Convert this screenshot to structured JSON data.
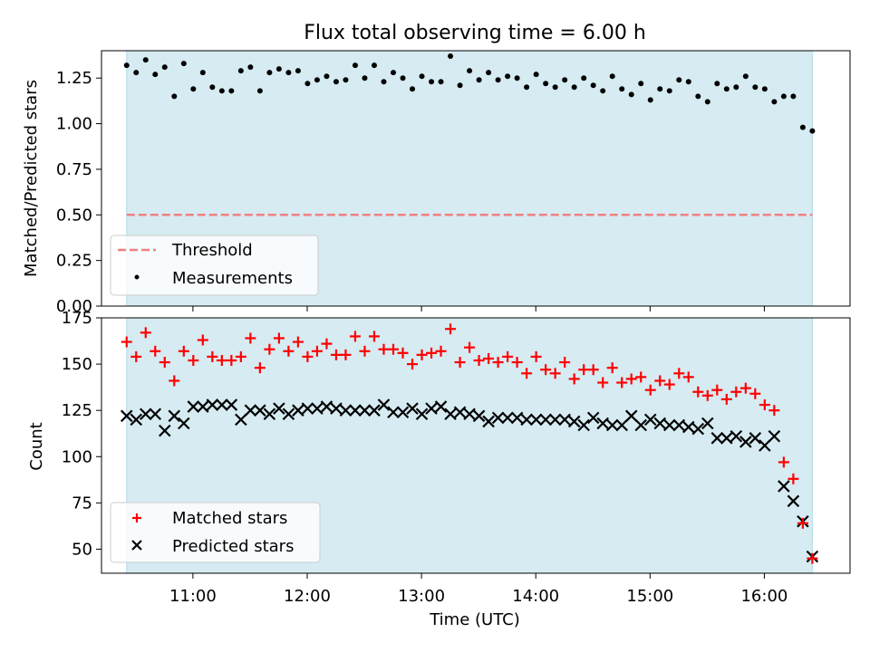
{
  "chart_data": {
    "title": "Flux total observing time = 6.00 h",
    "xlabel": "Time (UTC)",
    "x_unit": "hours (UTC)",
    "x_range": [
      10.2,
      16.75
    ],
    "x_ticks": [
      {
        "value": 11,
        "label": "11:00"
      },
      {
        "value": 12,
        "label": "12:00"
      },
      {
        "value": 13,
        "label": "13:00"
      },
      {
        "value": 14,
        "label": "14:00"
      },
      {
        "value": 15,
        "label": "15:00"
      },
      {
        "value": 16,
        "label": "16:00"
      }
    ],
    "observing_window": [
      10.42,
      16.42
    ],
    "shade_color": "#add8e6",
    "top": {
      "type": "scatter",
      "ylabel": "Matched/Predicted stars",
      "ylim": [
        0,
        1.4
      ],
      "yticks": [
        "0.00",
        "0.25",
        "0.50",
        "0.75",
        "1.00",
        "1.25"
      ],
      "threshold": {
        "name": "Threshold",
        "value": 0.5,
        "color": "#f08080"
      },
      "legend": [
        {
          "label": "Threshold",
          "kind": "dashed-line",
          "color": "#f08080"
        },
        {
          "label": "Measurements",
          "kind": "dot",
          "color": "#000000"
        }
      ],
      "series": [
        {
          "name": "Measurements",
          "color": "#000000",
          "values": [
            1.32,
            1.28,
            1.35,
            1.27,
            1.31,
            1.15,
            1.33,
            1.19,
            1.28,
            1.2,
            1.18,
            1.18,
            1.29,
            1.31,
            1.18,
            1.28,
            1.3,
            1.28,
            1.29,
            1.22,
            1.24,
            1.26,
            1.23,
            1.24,
            1.32,
            1.25,
            1.32,
            1.23,
            1.28,
            1.25,
            1.19,
            1.26,
            1.23,
            1.23,
            1.37,
            1.21,
            1.29,
            1.24,
            1.28,
            1.24,
            1.26,
            1.25,
            1.2,
            1.27,
            1.22,
            1.2,
            1.24,
            1.2,
            1.25,
            1.21,
            1.18,
            1.26,
            1.19,
            1.16,
            1.22,
            1.13,
            1.19,
            1.18,
            1.24,
            1.23,
            1.15,
            1.12,
            1.22,
            1.19,
            1.2,
            1.26,
            1.2,
            1.19,
            1.12,
            1.15,
            1.15,
            0.98,
            0.96
          ]
        }
      ]
    },
    "bottom": {
      "type": "scatter",
      "ylabel": "Count",
      "ylim": [
        37,
        175
      ],
      "yticks": [
        "50",
        "75",
        "100",
        "125",
        "150",
        "175"
      ],
      "legend": [
        {
          "label": "Matched stars",
          "kind": "plus",
          "color": "#ff0000"
        },
        {
          "label": "Predicted stars",
          "kind": "x",
          "color": "#000000"
        }
      ],
      "series": [
        {
          "name": "Matched stars",
          "color": "#ff0000",
          "marker": "plus",
          "values": [
            162,
            154,
            167,
            157,
            151,
            141,
            157,
            152,
            163,
            154,
            152,
            152,
            154,
            164,
            148,
            158,
            164,
            157,
            162,
            154,
            157,
            161,
            155,
            155,
            165,
            157,
            165,
            158,
            158,
            156,
            150,
            155,
            156,
            157,
            169,
            151,
            159,
            152,
            153,
            151,
            154,
            151,
            145,
            154,
            147,
            145,
            151,
            142,
            147,
            147,
            140,
            148,
            140,
            142,
            143,
            136,
            141,
            139,
            145,
            143,
            135,
            133,
            136,
            131,
            135,
            137,
            134,
            128,
            125,
            97,
            88,
            64,
            45
          ]
        },
        {
          "name": "Predicted stars",
          "color": "#000000",
          "marker": "x",
          "values": [
            122,
            120,
            123,
            123,
            114,
            122,
            118,
            127,
            127,
            128,
            128,
            128,
            120,
            125,
            125,
            123,
            126,
            123,
            125,
            126,
            126,
            127,
            126,
            125,
            125,
            125,
            125,
            128,
            124,
            124,
            126,
            123,
            126,
            127,
            123,
            124,
            123,
            122,
            119,
            121,
            121,
            121,
            120,
            120,
            120,
            120,
            120,
            119,
            117,
            121,
            118,
            117,
            117,
            122,
            117,
            120,
            118,
            117,
            117,
            116,
            115,
            118,
            110,
            110,
            111,
            108,
            110,
            106,
            111,
            84,
            76,
            65,
            46
          ]
        }
      ]
    }
  }
}
